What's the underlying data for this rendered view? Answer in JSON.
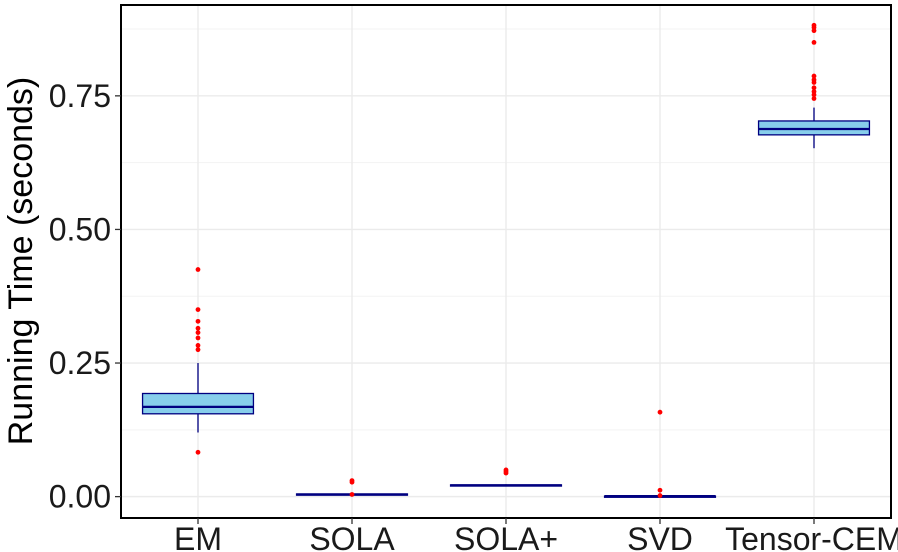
{
  "chart_data": {
    "type": "box",
    "title": "",
    "xlabel": "",
    "ylabel": "Running Time (seconds)",
    "ylim": [
      -0.04,
      0.92
    ],
    "yticks": [
      0.0,
      0.25,
      0.5,
      0.75
    ],
    "ytick_labels": [
      "0.00",
      "0.25",
      "0.50",
      "0.75"
    ],
    "grid": true,
    "legend": "none",
    "categories": [
      "EM",
      "SOLA",
      "SOLA+",
      "SVD",
      "Tensor-CEM"
    ],
    "boxes": [
      {
        "category": "EM",
        "whisker_low": 0.12,
        "q1": 0.155,
        "median": 0.168,
        "q3": 0.193,
        "whisker_high": 0.25,
        "outliers": [
          0.083,
          0.275,
          0.283,
          0.297,
          0.307,
          0.315,
          0.328,
          0.35,
          0.425
        ]
      },
      {
        "category": "SOLA",
        "whisker_low": 0.003,
        "q1": 0.003,
        "median": 0.004,
        "q3": 0.005,
        "whisker_high": 0.006,
        "outliers": [
          0.004,
          0.027,
          0.03
        ]
      },
      {
        "category": "SOLA+",
        "whisker_low": 0.019,
        "q1": 0.02,
        "median": 0.021,
        "q3": 0.022,
        "whisker_high": 0.023,
        "outliers": [
          0.044,
          0.047,
          0.05
        ]
      },
      {
        "category": "SVD",
        "whisker_low": 0.0,
        "q1": 0.0,
        "median": 0.001,
        "q3": 0.001,
        "whisker_high": 0.002,
        "outliers": [
          0.002,
          0.012,
          0.158
        ]
      },
      {
        "category": "Tensor-CEM",
        "whisker_low": 0.652,
        "q1": 0.677,
        "median": 0.688,
        "q3": 0.703,
        "whisker_high": 0.728,
        "outliers": [
          0.745,
          0.752,
          0.758,
          0.765,
          0.775,
          0.78,
          0.787,
          0.85,
          0.872,
          0.878,
          0.882
        ]
      }
    ],
    "colors": {
      "box_fill": "#87ceeb",
      "box_line": "#000080",
      "outlier": "#ff0000",
      "grid": "#ebebeb",
      "panel_border": "#000000"
    }
  }
}
